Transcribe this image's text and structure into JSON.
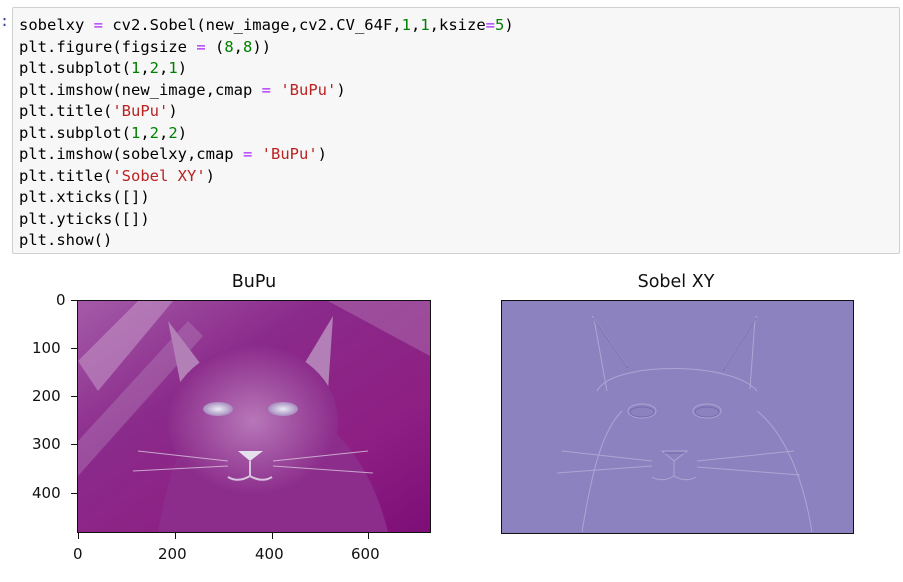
{
  "cell": {
    "prompt": ":",
    "lines": [
      [
        [
          "p",
          "sobelxy "
        ],
        [
          "o",
          "="
        ],
        [
          "p",
          " cv2.Sobel(new_image,cv2.CV_64F,"
        ],
        [
          "n",
          "1"
        ],
        [
          "p",
          ","
        ],
        [
          "n",
          "1"
        ],
        [
          "p",
          ",ksize"
        ],
        [
          "o",
          "="
        ],
        [
          "n",
          "5"
        ],
        [
          "p",
          ")"
        ]
      ],
      [
        [
          "p",
          "plt.figure(figsize "
        ],
        [
          "o",
          "="
        ],
        [
          "p",
          " ("
        ],
        [
          "n",
          "8"
        ],
        [
          "p",
          ","
        ],
        [
          "n",
          "8"
        ],
        [
          "p",
          "))"
        ]
      ],
      [
        [
          "p",
          "plt.subplot("
        ],
        [
          "n",
          "1"
        ],
        [
          "p",
          ","
        ],
        [
          "n",
          "2"
        ],
        [
          "p",
          ","
        ],
        [
          "n",
          "1"
        ],
        [
          "p",
          ")"
        ]
      ],
      [
        [
          "p",
          "plt.imshow(new_image,cmap "
        ],
        [
          "o",
          "="
        ],
        [
          "p",
          " "
        ],
        [
          "s",
          "'BuPu'"
        ],
        [
          "p",
          ")"
        ]
      ],
      [
        [
          "p",
          "plt.title("
        ],
        [
          "s",
          "'BuPu'"
        ],
        [
          "p",
          ")"
        ]
      ],
      [
        [
          "p",
          "plt.subplot("
        ],
        [
          "n",
          "1"
        ],
        [
          "p",
          ","
        ],
        [
          "n",
          "2"
        ],
        [
          "p",
          ","
        ],
        [
          "n",
          "2"
        ],
        [
          "p",
          ")"
        ]
      ],
      [
        [
          "p",
          "plt.imshow(sobelxy,cmap "
        ],
        [
          "o",
          "="
        ],
        [
          "p",
          " "
        ],
        [
          "s",
          "'BuPu'"
        ],
        [
          "p",
          ")"
        ]
      ],
      [
        [
          "p",
          "plt.title("
        ],
        [
          "s",
          "'Sobel XY'"
        ],
        [
          "p",
          ")"
        ]
      ],
      [
        [
          "p",
          "plt.xticks([])"
        ]
      ],
      [
        [
          "p",
          "plt.yticks([])"
        ]
      ],
      [
        [
          "p",
          "plt.show()"
        ]
      ]
    ]
  },
  "output": {
    "left_plot": {
      "title": "BuPu",
      "y_ticks": [
        "0",
        "100",
        "200",
        "300",
        "400"
      ],
      "x_ticks": [
        "0",
        "200",
        "400",
        "600"
      ]
    },
    "right_plot": {
      "title": "Sobel XY"
    }
  },
  "colors": {
    "cmap_dark": "#7f0f7e",
    "cmap_mid": "#a24ea8",
    "cmap_light": "#dfe6f0",
    "sobel_bg": "#8c82c0"
  }
}
